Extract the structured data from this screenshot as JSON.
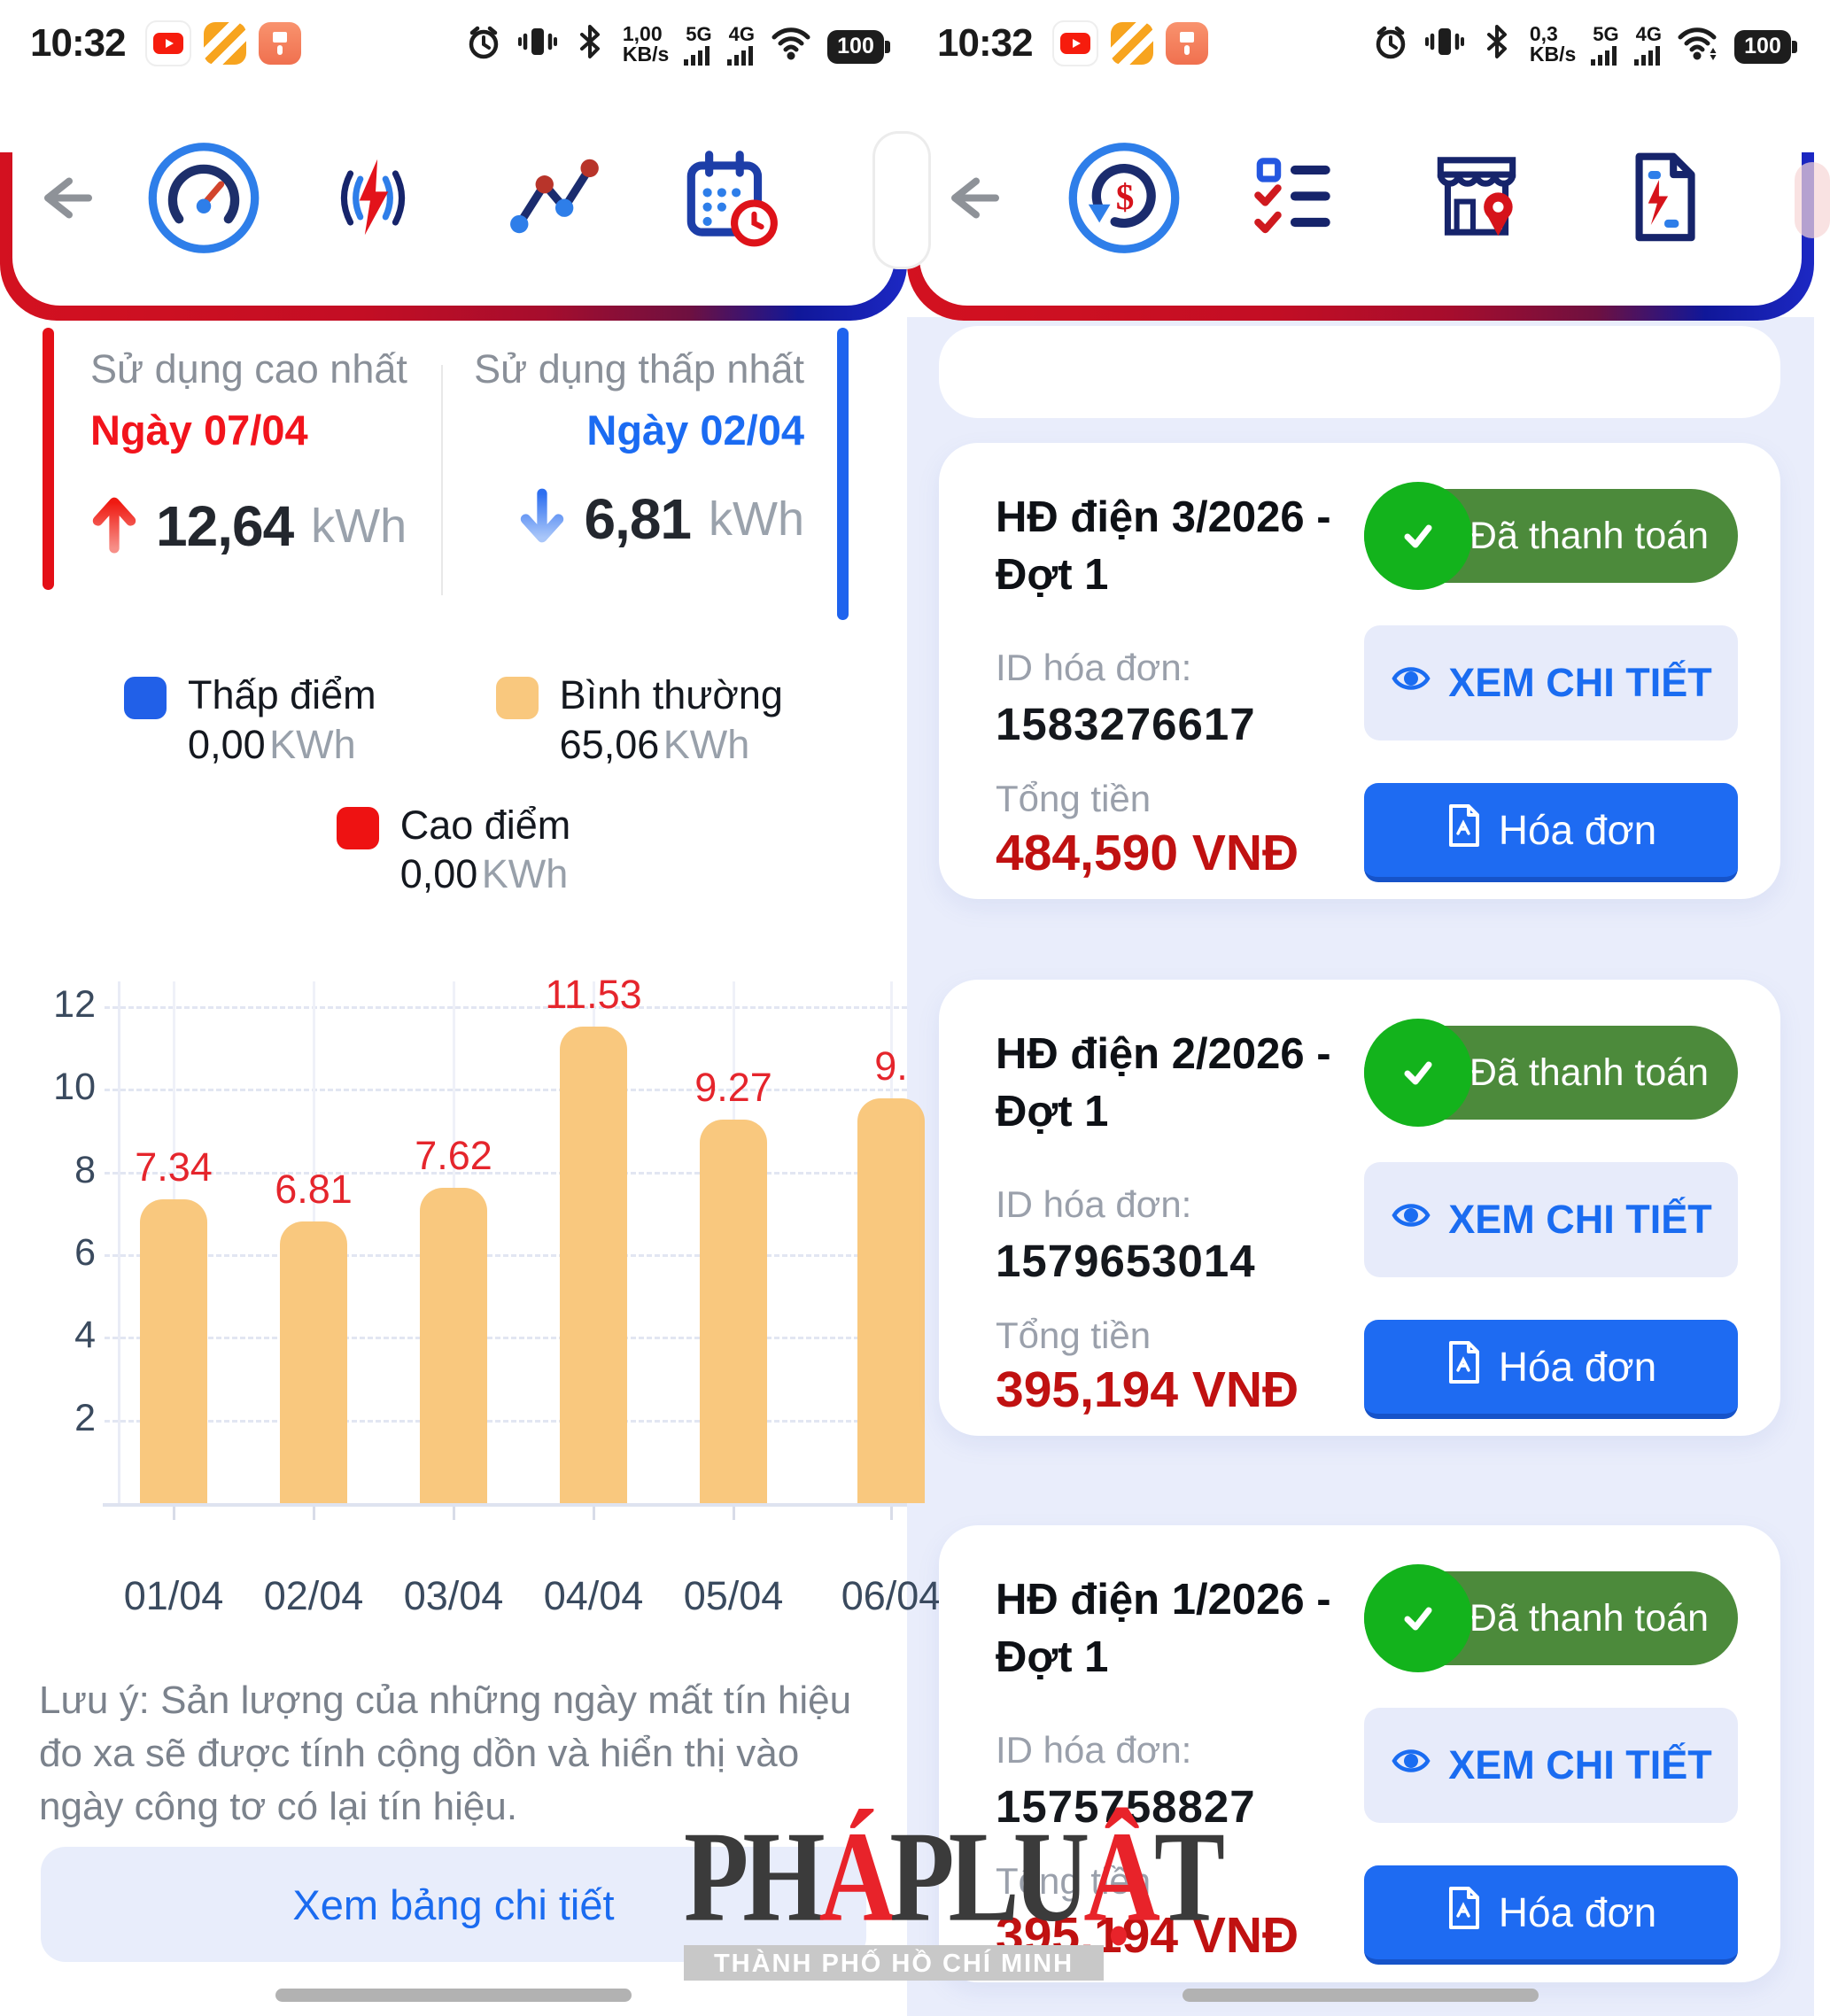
{
  "status": {
    "left": {
      "time": "10:32",
      "net_speed": "1,00",
      "net_speed_unit": "KB/s",
      "net_a": "5G",
      "net_b": "4G",
      "battery": "100"
    },
    "right": {
      "time": "10:32",
      "net_speed": "0,3",
      "net_speed_unit": "KB/s",
      "net_a": "5G",
      "net_b": "4G",
      "battery": "100"
    }
  },
  "usage_screen": {
    "stats": {
      "highest": {
        "title": "Sử dụng cao nhất",
        "date": "Ngày 07/04",
        "value": "12,64",
        "unit": "kWh"
      },
      "lowest": {
        "title": "Sử dụng thấp nhất",
        "date": "Ngày 02/04",
        "value": "6,81",
        "unit": "kWh"
      }
    },
    "legend": [
      {
        "label": "Thấp điểm",
        "value": "0,00",
        "unit": "KWh",
        "color": "#2160E8"
      },
      {
        "label": "Bình thường",
        "value": "65,06",
        "unit": "KWh",
        "color": "#F9C87E"
      },
      {
        "label": "Cao điểm",
        "value": "0,00",
        "unit": "KWh",
        "color": "#EE1212"
      }
    ],
    "note": "Lưu ý: Sản lượng của những ngày mất tín hiệu đo xa sẽ được tính cộng dồn và hiển thị vào ngày công tơ có lại tín hiệu.",
    "detail_button": "Xem bảng chi tiết"
  },
  "chart_data": {
    "type": "bar",
    "title": "",
    "xlabel": "",
    "ylabel": "",
    "categories": [
      "01/04",
      "02/04",
      "03/04",
      "04/04",
      "05/04",
      "06/04"
    ],
    "series": [
      {
        "name": "Bình thường",
        "color": "#F9C87E",
        "values": [
          7.34,
          6.81,
          7.62,
          11.53,
          9.27,
          9.8
        ]
      }
    ],
    "bar_labels": [
      "7.34",
      "6.81",
      "7.62",
      "11.53",
      "9.27",
      "9."
    ],
    "label_color": "#E5252C",
    "ylim": [
      0,
      12
    ],
    "yticks": [
      2,
      4,
      6,
      8,
      10,
      12
    ],
    "grid": true,
    "legend_position": "top",
    "layout_note": "last bar, its label and x tick are clipped by the right screen edge"
  },
  "invoice_screen": {
    "field_labels": {
      "invoice_id": "ID hóa đơn:",
      "total": "Tổng tiền"
    },
    "buttons": {
      "paid": "Đã thanh toán",
      "view_detail": "XEM CHI TIẾT",
      "invoice": "Hóa đơn"
    },
    "invoices": [
      {
        "title": "HĐ điện 3/2026 - Đợt 1",
        "id": "1583276617",
        "amount": "484,590 VNĐ"
      },
      {
        "title": "HĐ điện 2/2026 - Đợt 1",
        "id": "1579653014",
        "amount": "395,194 VNĐ"
      },
      {
        "title": "HĐ điện 1/2026 - Đợt 1",
        "id": "1575758827",
        "amount": "395,194 VNĐ"
      }
    ]
  },
  "watermark": {
    "p1": "PH",
    "a1": "Á",
    "p2": "PLU",
    "a2": "Ậ",
    "p3": "T",
    "subtitle": "THÀNH PHỐ HỒ CHÍ MINH"
  },
  "colors": {
    "accent_blue": "#1A6CF1",
    "accent_red": "#E3131B",
    "paid_green": "#4C8A3B",
    "check_green": "#13B31C",
    "amount_red": "#C01111",
    "band_red": "#C8102E",
    "band_blue": "#1C28C4",
    "background_right": "#E9EDFB"
  }
}
